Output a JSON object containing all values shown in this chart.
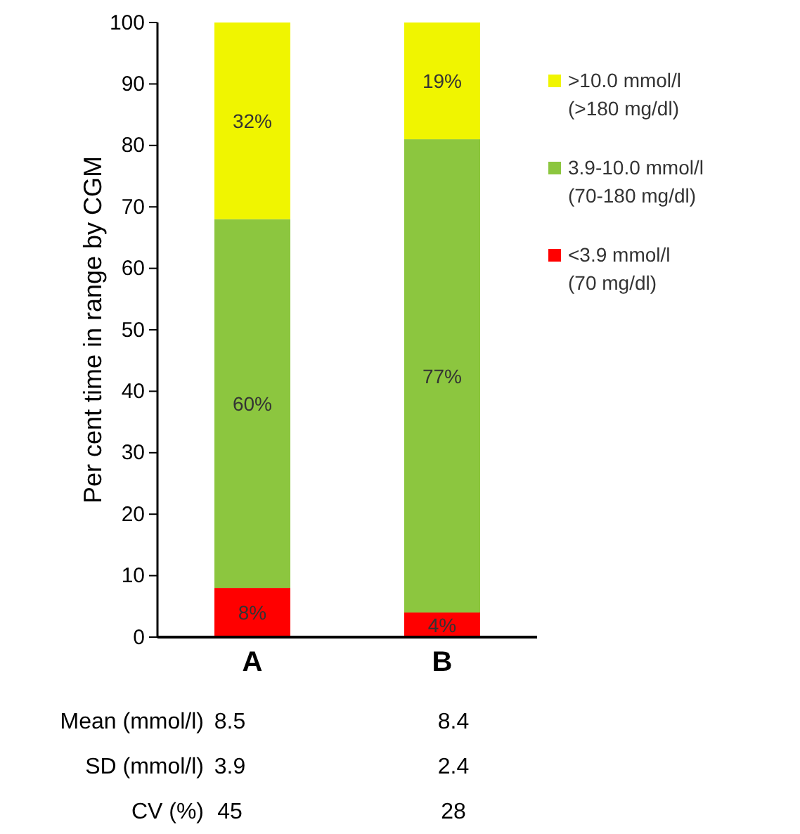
{
  "chart_data": {
    "type": "bar",
    "stacked": true,
    "ylabel": "Per cent time in range by CGM",
    "categories": [
      "A",
      "B"
    ],
    "series": [
      {
        "name": "<3.9 mmol/l (70 mg/dl)",
        "color": "#ff0000",
        "values": [
          8,
          4
        ],
        "value_labels": [
          "8%",
          "4%"
        ]
      },
      {
        "name": "3.9-10.0 mmol/l (70-180 mg/dl)",
        "color": "#8cc63f",
        "values": [
          60,
          77
        ],
        "value_labels": [
          "60%",
          "77%"
        ]
      },
      {
        "name": ">10.0 mmol/l (>180 mg/dl)",
        "color": "#f0f500",
        "values": [
          32,
          19
        ],
        "value_labels": [
          "32%",
          "19%"
        ]
      }
    ],
    "ylim": [
      0,
      100
    ],
    "yticks": [
      0,
      10,
      20,
      30,
      40,
      50,
      60,
      70,
      80,
      90,
      100
    ],
    "legend": "right",
    "annotations": [
      "Mean (mmol/l)",
      "8.5",
      "8.4",
      "SD (mmol/l)",
      "3.9",
      "2.4",
      "CV (%)",
      "45",
      "28"
    ]
  }
}
